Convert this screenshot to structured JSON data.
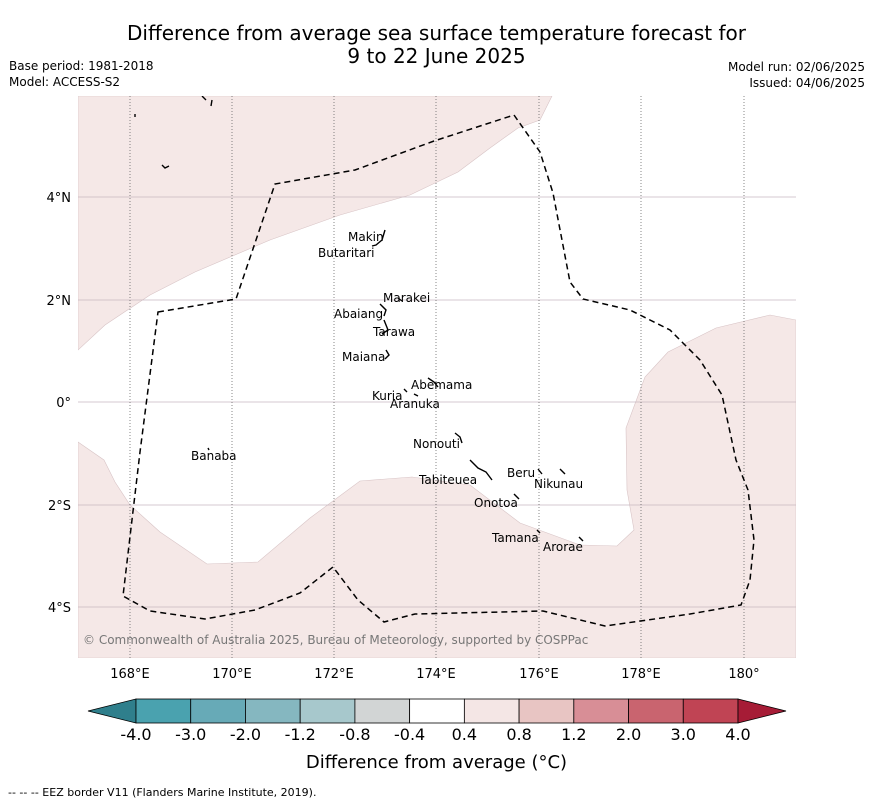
{
  "header": {
    "title_line1": "Difference from average sea surface temperature forecast for",
    "title_line2": "9 to 22 June 2025",
    "base_period": "Base period: 1981-2018",
    "model": "Model: ACCESS-S2",
    "model_run": "Model run: 02/06/2025",
    "issued": "Issued: 04/06/2025"
  },
  "map": {
    "lat_labels": [
      "4°N",
      "2°N",
      "0°",
      "2°S",
      "4°S"
    ],
    "lon_labels": [
      "168°E",
      "170°E",
      "172°E",
      "174°E",
      "176°E",
      "178°E",
      "180°"
    ],
    "places": [
      "Makin",
      "Butaritari",
      "Marakei",
      "Abaiang",
      "Tarawa",
      "Maiana",
      "Abemama",
      "Kuria",
      "Aranuka",
      "Nonouti",
      "Banaba",
      "Beru",
      "Nikunau",
      "Tabiteuea",
      "Onotoa",
      "Tamana",
      "Arorae"
    ],
    "copyright": "© Commonwealth of Australia 2025, Bureau of Meteorology, supported by COSPPac",
    "colors": {
      "anomaly_fill": "#f5e8e7",
      "eez_line": "#000000",
      "gridline": "#c8b9c0"
    }
  },
  "colorbar": {
    "ticks": [
      "-4.0",
      "-3.0",
      "-2.0",
      "-1.2",
      "-0.8",
      "-0.4",
      "0.4",
      "0.8",
      "1.2",
      "2.0",
      "3.0",
      "4.0"
    ],
    "colors": [
      "#2f7f8c",
      "#4aa2af",
      "#67aab7",
      "#85b7c0",
      "#a7c8cc",
      "#d2d5d5",
      "#ffffff",
      "#f4e6e5",
      "#e8c5c3",
      "#d88e96",
      "#c9646f",
      "#c04454",
      "#a61c36"
    ],
    "label": "Difference from average (°C)"
  },
  "footer": {
    "legend": "--  --  -- EEZ border V11 (Flanders Marine Institute, 2019)."
  }
}
